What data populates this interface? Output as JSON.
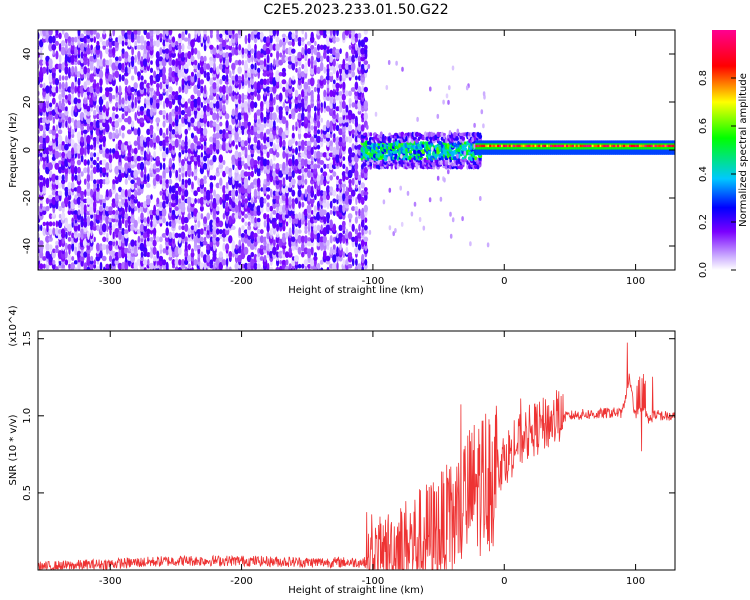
{
  "title": "C2E5.2023.233.01.50.G22",
  "chart_data": [
    {
      "type": "heatmap",
      "description_of_axes": "spectrogram",
      "xlabel": "Height of straight line (km)",
      "ylabel": "Frequency (Hz)",
      "xlim": [
        -355,
        130
      ],
      "ylim": [
        -50,
        50
      ],
      "xticks": [
        -300,
        -200,
        -100,
        0,
        100
      ],
      "xtick_labels": [
        "-300",
        "-200",
        "-100",
        "0",
        "100"
      ],
      "yticks": [
        -40,
        -20,
        0,
        20,
        40
      ],
      "ytick_labels": [
        "-40",
        "-20",
        "0",
        "20",
        "40"
      ],
      "colorbar": {
        "label": "Normalized spectral amplitude",
        "range": [
          0,
          1
        ],
        "ticks": [
          0.0,
          0.2,
          0.4,
          0.6,
          0.8
        ],
        "tick_labels": [
          "0.0",
          "0.2",
          "0.4",
          "0.6",
          "0.8"
        ],
        "colormap": [
          "#ffffff",
          "#7a00ff",
          "#0000ff",
          "#00c8ff",
          "#00ff00",
          "#ffff00",
          "#ff0000",
          "#ff0090"
        ]
      },
      "regions": [
        {
          "x": [
            -355,
            -105
          ],
          "freq_band": [
            -50,
            50
          ],
          "amplitude": "broadband noise 0.05-0.2"
        },
        {
          "x": [
            -105,
            -20
          ],
          "freq_band": [
            -6,
            6
          ],
          "amplitude": "0.2-0.5"
        },
        {
          "x": [
            -20,
            130
          ],
          "freq_band": [
            -2,
            3
          ],
          "amplitude": "0.5-1.0, peak near 1.7 Hz"
        }
      ]
    },
    {
      "type": "line",
      "xlabel": "Height of straight line (km)",
      "ylabel": "SNR (10 * v/v)",
      "y_multiplier": "(x10^4)",
      "xlim": [
        -355,
        130
      ],
      "ylim": [
        0,
        1.55
      ],
      "xticks": [
        -300,
        -200,
        -100,
        0,
        100
      ],
      "xtick_labels": [
        "-300",
        "-200",
        "-100",
        "0",
        "100"
      ],
      "yticks": [
        0.5,
        1.0,
        1.5
      ],
      "ytick_labels": [
        "0.5",
        "1.0",
        "1.5"
      ],
      "series": [
        {
          "color": "#ee3333",
          "x": [
            -355,
            -300,
            -250,
            -200,
            -150,
            -105,
            -90,
            -70,
            -50,
            -40,
            -30,
            -20,
            -10,
            0,
            10,
            20,
            30,
            40,
            50,
            60,
            70,
            80,
            90,
            95,
            100,
            105,
            110,
            115,
            120,
            130
          ],
          "y": [
            0.02,
            0.04,
            0.06,
            0.06,
            0.05,
            0.05,
            0.12,
            0.18,
            0.25,
            0.3,
            0.45,
            0.55,
            0.62,
            0.72,
            0.82,
            0.9,
            0.94,
            0.98,
            1.0,
            1.01,
            1.01,
            1.02,
            1.02,
            1.25,
            1.0,
            1.05,
            0.97,
            1.01,
            1.0,
            0.99
          ]
        }
      ]
    }
  ]
}
